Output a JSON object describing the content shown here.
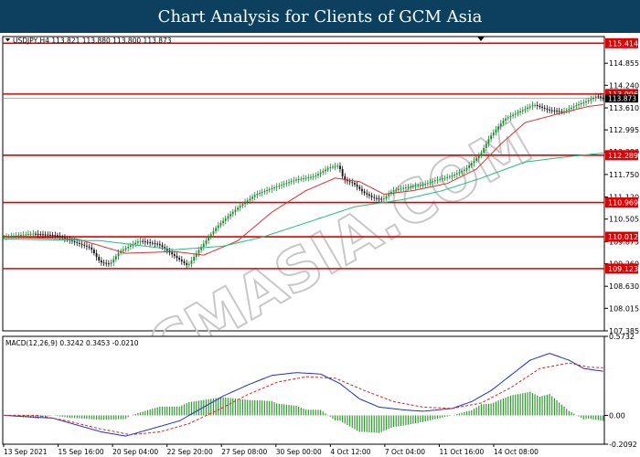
{
  "page_title": "Chart Analysis for Clients of GCM Asia",
  "chart_data": {
    "type": "candlestick",
    "symbol_info": "USDJPY,H4  113.821 113.880 113.800 113.873",
    "ylim": [
      107.385,
      115.6
    ],
    "y_ticks": [
      {
        "value": 114.855,
        "label": "114.855"
      },
      {
        "value": 114.24,
        "label": "114.240"
      },
      {
        "value": 113.61,
        "label": "113.610"
      },
      {
        "value": 112.995,
        "label": "112.995"
      },
      {
        "value": 112.38,
        "label": "112.380"
      },
      {
        "value": 111.75,
        "label": "111.750"
      },
      {
        "value": 111.12,
        "label": "111.120"
      },
      {
        "value": 110.505,
        "label": "110.505"
      },
      {
        "value": 109.875,
        "label": "109.875"
      },
      {
        "value": 109.26,
        "label": "109.260"
      },
      {
        "value": 108.63,
        "label": "108.630"
      },
      {
        "value": 108.015,
        "label": "108.015"
      },
      {
        "value": 107.385,
        "label": "107.385"
      }
    ],
    "levels": [
      {
        "value": 115.414,
        "label": "115.414"
      },
      {
        "value": 113.996,
        "label": "113.996"
      },
      {
        "value": 112.289,
        "label": "112.289"
      },
      {
        "value": 110.969,
        "label": "110.969"
      },
      {
        "value": 110.012,
        "label": "110.012"
      },
      {
        "value": 109.123,
        "label": "109.123"
      }
    ],
    "current_price": {
      "value": 113.873,
      "label": "113.873"
    },
    "x_labels": [
      "13 Sep 2021",
      "15 Sep 16:00",
      "20 Sep 04:00",
      "22 Sep 20:00",
      "27 Sep 08:00",
      "30 Sep 00:00",
      "4 Oct 12:00",
      "7 Oct 04:00",
      "11 Oct 16:00",
      "14 Oct 08:00"
    ],
    "price_path": [
      [
        0,
        110.0
      ],
      [
        12,
        110.1
      ],
      [
        22,
        110.05
      ],
      [
        30,
        109.85
      ],
      [
        36,
        109.7
      ],
      [
        40,
        109.3
      ],
      [
        44,
        109.25
      ],
      [
        48,
        109.6
      ],
      [
        56,
        109.9
      ],
      [
        64,
        109.8
      ],
      [
        70,
        109.5
      ],
      [
        74,
        109.3
      ],
      [
        76,
        109.2
      ],
      [
        80,
        109.6
      ],
      [
        88,
        110.3
      ],
      [
        96,
        110.8
      ],
      [
        104,
        111.2
      ],
      [
        112,
        111.4
      ],
      [
        120,
        111.6
      ],
      [
        128,
        111.7
      ],
      [
        134,
        111.95
      ],
      [
        138,
        112.0
      ],
      [
        140,
        111.6
      ],
      [
        144,
        111.5
      ],
      [
        148,
        111.25
      ],
      [
        152,
        111.1
      ],
      [
        156,
        111.05
      ],
      [
        160,
        111.3
      ],
      [
        166,
        111.4
      ],
      [
        172,
        111.45
      ],
      [
        178,
        111.6
      ],
      [
        184,
        111.7
      ],
      [
        190,
        111.9
      ],
      [
        196,
        112.3
      ],
      [
        200,
        112.8
      ],
      [
        206,
        113.3
      ],
      [
        212,
        113.5
      ],
      [
        218,
        113.7
      ],
      [
        224,
        113.55
      ],
      [
        230,
        113.5
      ],
      [
        236,
        113.7
      ],
      [
        240,
        113.8
      ],
      [
        244,
        113.95
      ],
      [
        246,
        113.873
      ]
    ],
    "ma_fast": [
      [
        0,
        110.0
      ],
      [
        30,
        109.95
      ],
      [
        50,
        109.55
      ],
      [
        70,
        109.6
      ],
      [
        82,
        109.5
      ],
      [
        96,
        109.9
      ],
      [
        110,
        110.7
      ],
      [
        124,
        111.3
      ],
      [
        136,
        111.65
      ],
      [
        146,
        111.55
      ],
      [
        156,
        111.2
      ],
      [
        168,
        111.3
      ],
      [
        182,
        111.5
      ],
      [
        194,
        111.9
      ],
      [
        204,
        112.6
      ],
      [
        214,
        113.2
      ],
      [
        228,
        113.45
      ],
      [
        240,
        113.65
      ],
      [
        246,
        113.7
      ]
    ],
    "ma_slow": [
      [
        0,
        109.95
      ],
      [
        40,
        109.9
      ],
      [
        70,
        109.65
      ],
      [
        90,
        109.75
      ],
      [
        106,
        110.0
      ],
      [
        124,
        110.4
      ],
      [
        144,
        110.85
      ],
      [
        164,
        111.05
      ],
      [
        180,
        111.3
      ],
      [
        196,
        111.65
      ],
      [
        214,
        112.1
      ],
      [
        232,
        112.25
      ],
      [
        246,
        112.35
      ]
    ],
    "macd": {
      "label": "MACD(12,26,9)  0.3242  0.3453  -0.0210",
      "ylim": [
        -0.2092,
        0.5732
      ],
      "y_ticks": [
        {
          "value": 0.5732,
          "label": "0.5732"
        },
        {
          "value": 0.0,
          "label": "0.00"
        },
        {
          "value": -0.2092,
          "label": "-0.2092"
        }
      ],
      "main": [
        [
          0,
          0.0
        ],
        [
          10,
          -0.01
        ],
        [
          20,
          -0.02
        ],
        [
          30,
          -0.07
        ],
        [
          40,
          -0.12
        ],
        [
          50,
          -0.15
        ],
        [
          60,
          -0.1
        ],
        [
          72,
          -0.04
        ],
        [
          80,
          0.04
        ],
        [
          90,
          0.14
        ],
        [
          100,
          0.22
        ],
        [
          110,
          0.29
        ],
        [
          120,
          0.31
        ],
        [
          130,
          0.3
        ],
        [
          138,
          0.23
        ],
        [
          146,
          0.12
        ],
        [
          154,
          0.06
        ],
        [
          164,
          0.04
        ],
        [
          172,
          0.03
        ],
        [
          184,
          0.05
        ],
        [
          192,
          0.1
        ],
        [
          200,
          0.18
        ],
        [
          208,
          0.29
        ],
        [
          216,
          0.4
        ],
        [
          224,
          0.45
        ],
        [
          232,
          0.4
        ],
        [
          238,
          0.34
        ],
        [
          246,
          0.32
        ]
      ],
      "signal": [
        [
          0,
          0.0
        ],
        [
          14,
          0.0
        ],
        [
          26,
          -0.04
        ],
        [
          40,
          -0.1
        ],
        [
          52,
          -0.14
        ],
        [
          64,
          -0.12
        ],
        [
          76,
          -0.06
        ],
        [
          88,
          0.04
        ],
        [
          100,
          0.15
        ],
        [
          112,
          0.24
        ],
        [
          124,
          0.28
        ],
        [
          136,
          0.27
        ],
        [
          148,
          0.18
        ],
        [
          160,
          0.1
        ],
        [
          172,
          0.06
        ],
        [
          184,
          0.05
        ],
        [
          196,
          0.09
        ],
        [
          208,
          0.2
        ],
        [
          220,
          0.34
        ],
        [
          232,
          0.38
        ],
        [
          240,
          0.35
        ],
        [
          246,
          0.345
        ]
      ]
    },
    "watermark": "GCMASIA.COM",
    "colors": {
      "up_candle": "#1a8a2e",
      "down_candle": "#111111",
      "level_line": "#e00000",
      "ma_fast": "#e03030",
      "ma_slow": "#20c080",
      "macd_main": "#1c2fd8",
      "macd_signal": "#e02020",
      "macd_hist": "#2a9a2a",
      "title_bg": "#0d3f5f"
    }
  }
}
